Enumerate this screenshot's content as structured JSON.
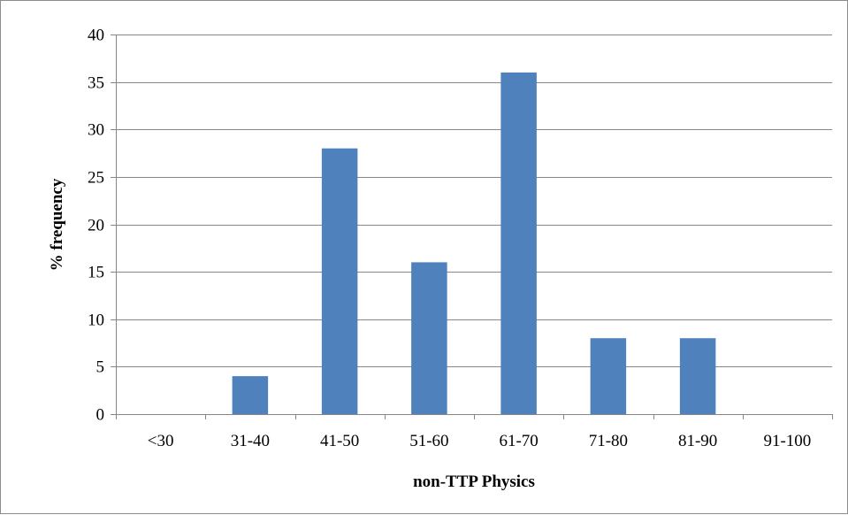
{
  "chart_data": {
    "type": "bar",
    "categories": [
      "<30",
      "31-40",
      "41-50",
      "51-60",
      "61-70",
      "71-80",
      "81-90",
      "91-100"
    ],
    "values": [
      0,
      4,
      28,
      16,
      36,
      8,
      8,
      0
    ],
    "xlabel": "non-TTP Physics",
    "ylabel": "% frequency",
    "ylim": [
      0,
      40
    ],
    "yticks": [
      0,
      5,
      10,
      15,
      20,
      25,
      30,
      35,
      40
    ],
    "grid": true,
    "legend": "none",
    "bar_color": "#4f81bd",
    "grid_color": "#868686"
  }
}
